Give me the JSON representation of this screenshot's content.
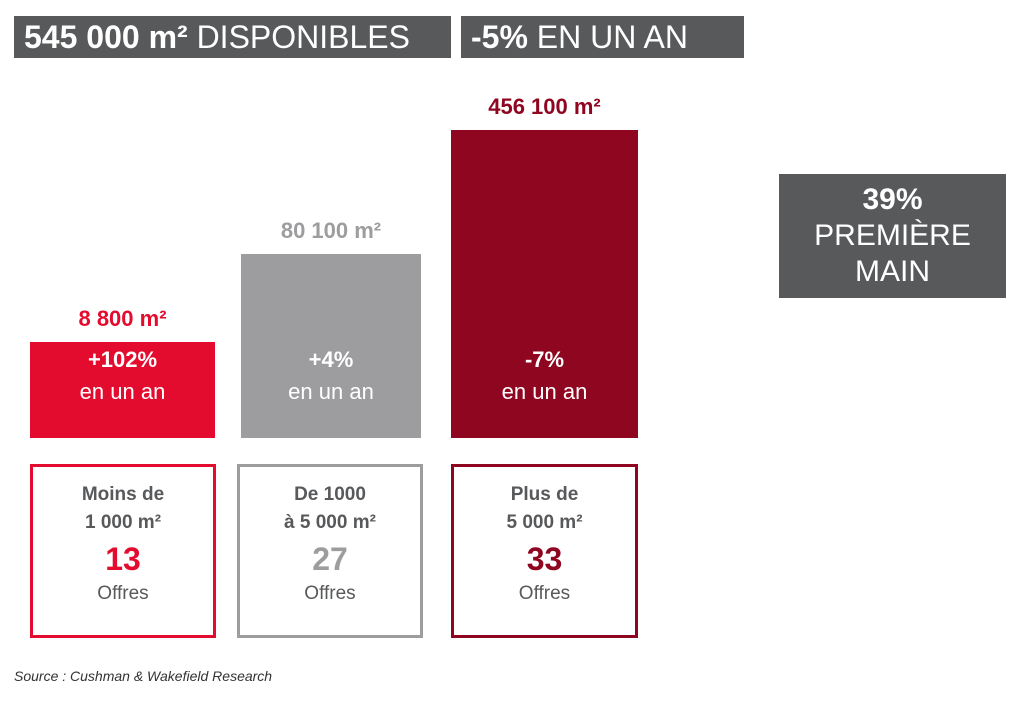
{
  "header": {
    "total_value": "545 000 m²",
    "total_label": "DISPONIBLES",
    "change_value": "-5%",
    "change_label": "EN UN AN"
  },
  "side_box": {
    "value": "39%",
    "label_line1": "PREMIÈRE",
    "label_line2": "MAIN"
  },
  "colors": {
    "small": "#e30c2e",
    "medium": "#9d9c9f",
    "large": "#8f0621",
    "dark_box": "#58595b"
  },
  "chart_data": {
    "type": "bar",
    "categories": [
      "Moins de 1 000 m²",
      "De 1000 à 5 000 m²",
      "Plus de 5 000 m²"
    ],
    "values": [
      8800,
      80100,
      456100
    ],
    "value_labels": [
      "8 800 m²",
      "80 100 m²",
      "456 100 m²"
    ],
    "changes": [
      "+102%",
      "+4%",
      "-7%"
    ],
    "change_suffix": "en un an",
    "offers": [
      13,
      27,
      33
    ]
  },
  "cards": [
    {
      "range": "Moins de\n1 000 m²",
      "count": "13",
      "offers_label": "Offres"
    },
    {
      "range": "De 1000\nà 5 000 m²",
      "count": "27",
      "offers_label": "Offres"
    },
    {
      "range": "Plus de\n5 000 m²",
      "count": "33",
      "offers_label": "Offres"
    }
  ],
  "source": "Source : Cushman & Wakefield Research"
}
